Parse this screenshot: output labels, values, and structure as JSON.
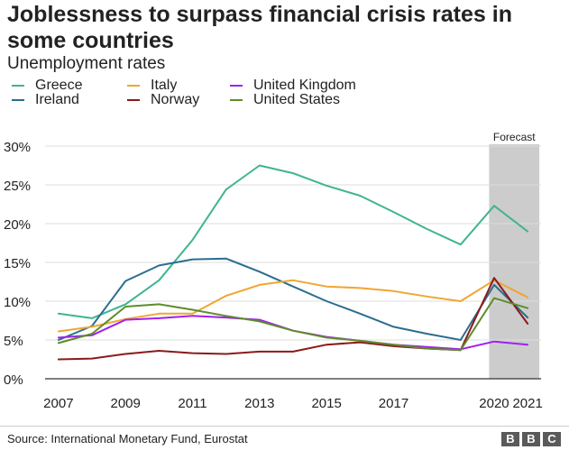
{
  "chart_data": {
    "type": "line",
    "title": "Joblessness to surpass financial crisis rates in some countries",
    "subtitle": "Unemployment rates",
    "xlabel": "",
    "ylabel": "",
    "x": [
      2007,
      2008,
      2009,
      2010,
      2011,
      2012,
      2013,
      2014,
      2015,
      2016,
      2017,
      2018,
      2019,
      2020,
      2021
    ],
    "x_tick_labels": [
      "2007",
      "2009",
      "2011",
      "2013",
      "2015",
      "2017",
      "2020",
      "2021"
    ],
    "x_tick_values": [
      2007,
      2009,
      2011,
      2013,
      2015,
      2017,
      2020,
      2021
    ],
    "xlim": [
      2006.6,
      2021.4
    ],
    "ylim": [
      0,
      30
    ],
    "y_ticks": [
      0,
      5,
      10,
      15,
      20,
      25,
      30
    ],
    "y_tick_labels": [
      "0%",
      "5%",
      "10%",
      "15%",
      "20%",
      "25%",
      "30%"
    ],
    "grid": true,
    "forecast": {
      "label": "Forecast",
      "start": 2019.85,
      "end": 2021.35
    },
    "series": [
      {
        "name": "Greece",
        "color": "#3fb58f",
        "values": [
          8.4,
          7.8,
          9.6,
          12.7,
          17.9,
          24.4,
          27.5,
          26.5,
          24.9,
          23.6,
          21.5,
          19.3,
          17.3,
          22.3,
          19.0
        ]
      },
      {
        "name": "Ireland",
        "color": "#2a6e8f",
        "values": [
          5.0,
          6.8,
          12.6,
          14.6,
          15.4,
          15.5,
          13.8,
          11.9,
          10.0,
          8.4,
          6.7,
          5.8,
          5.0,
          12.1,
          7.9
        ]
      },
      {
        "name": "Italy",
        "color": "#f0a631",
        "values": [
          6.1,
          6.7,
          7.7,
          8.4,
          8.4,
          10.7,
          12.1,
          12.7,
          11.9,
          11.7,
          11.3,
          10.6,
          10.0,
          12.7,
          10.5
        ]
      },
      {
        "name": "Norway",
        "color": "#8b1a1a",
        "values": [
          2.5,
          2.6,
          3.2,
          3.6,
          3.3,
          3.2,
          3.5,
          3.5,
          4.4,
          4.7,
          4.2,
          3.9,
          3.7,
          13.0,
          7.1
        ]
      },
      {
        "name": "United Kingdom",
        "color": "#a020f0",
        "values": [
          5.3,
          5.6,
          7.6,
          7.8,
          8.1,
          7.9,
          7.6,
          6.2,
          5.4,
          4.9,
          4.4,
          4.1,
          3.8,
          4.8,
          4.4
        ]
      },
      {
        "name": "United States",
        "color": "#5e8d2a",
        "values": [
          4.6,
          5.8,
          9.3,
          9.6,
          8.9,
          8.1,
          7.4,
          6.2,
          5.3,
          4.9,
          4.4,
          3.9,
          3.7,
          10.4,
          9.1
        ]
      }
    ],
    "source": "Source: International Monetary Fund, Eurostat"
  },
  "logo": {
    "letters": [
      "B",
      "B",
      "C"
    ]
  }
}
